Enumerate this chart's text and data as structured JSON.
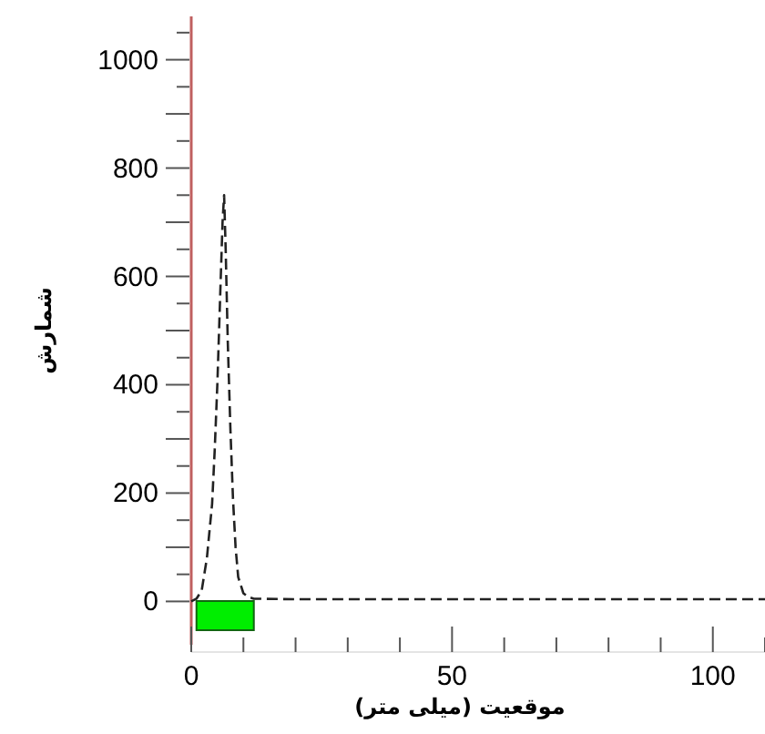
{
  "chart_data": {
    "type": "line",
    "xlabel": "موقعیت (میلی متر)",
    "ylabel": "شمارش",
    "x": [
      0,
      1,
      2,
      3,
      4,
      4.5,
      5,
      5.5,
      6,
      6.3,
      6.6,
      7,
      7.5,
      8,
      8.5,
      9,
      10,
      11,
      12,
      20,
      30,
      40,
      50,
      60,
      70,
      80,
      90,
      100,
      110
    ],
    "series": [
      {
        "color": "#222222",
        "values": [
          0,
          5,
          20,
          80,
          180,
          280,
          400,
          550,
          700,
          750,
          650,
          480,
          320,
          190,
          100,
          45,
          15,
          8,
          5,
          4,
          4,
          4,
          4,
          4,
          4,
          4,
          4,
          4,
          4
        ]
      }
    ],
    "line_style": "dashed",
    "marker": "none",
    "grid": false,
    "xlim": [
      0,
      110
    ],
    "xticks": [
      0,
      {
        "value": 10,
        "label": null
      },
      {
        "value": 20,
        "label": null
      },
      {
        "value": 30,
        "label": null
      },
      {
        "value": 40,
        "label": null
      },
      50,
      {
        "value": 60,
        "label": null
      },
      {
        "value": 70,
        "label": null
      },
      {
        "value": 80,
        "label": null
      },
      {
        "value": 90,
        "label": null
      },
      100,
      {
        "value": 110,
        "label": null
      }
    ],
    "ylim": [
      -80,
      1080
    ],
    "yticks": [
      0,
      {
        "value": 50,
        "label": null
      },
      {
        "value": 100,
        "label": null
      },
      {
        "value": 150,
        "label": null
      },
      200,
      {
        "value": 250,
        "label": null
      },
      {
        "value": 300,
        "label": null
      },
      {
        "value": 350,
        "label": null
      },
      400,
      {
        "value": 450,
        "label": null
      },
      {
        "value": 500,
        "label": null
      },
      {
        "value": 550,
        "label": null
      },
      600,
      {
        "value": 650,
        "label": null
      },
      {
        "value": 700,
        "label": null
      },
      {
        "value": 750,
        "label": null
      },
      800,
      {
        "value": 850,
        "label": null
      },
      {
        "value": 900,
        "label": null
      },
      {
        "value": 950,
        "label": null
      },
      1000,
      {
        "value": 1050,
        "label": null
      }
    ],
    "bands": [
      {
        "axis": "x",
        "from": 1,
        "to": 12,
        "color": "#00ee00"
      }
    ]
  }
}
